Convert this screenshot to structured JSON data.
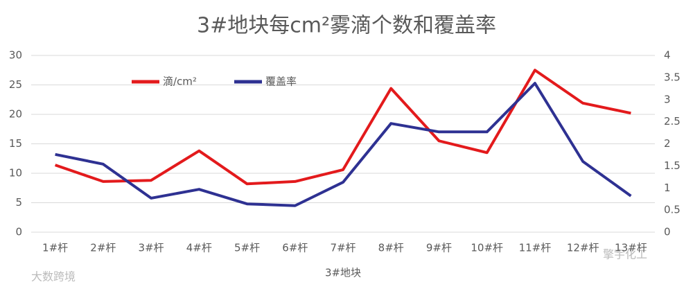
{
  "chart_data": {
    "type": "line",
    "title": "3#地块每cm²雾滴个数和覆盖率",
    "x_label": "3#地块",
    "categories": [
      "1#杆",
      "2#杆",
      "3#杆",
      "4#杆",
      "5#杆",
      "6#杆",
      "7#杆",
      "8#杆",
      "9#杆",
      "10#杆",
      "11#杆",
      "12#杆",
      "13#杆"
    ],
    "series": [
      {
        "name": "滴/cm²",
        "color": "#e31a1c",
        "values": [
          11.4,
          8.6,
          8.8,
          13.8,
          8.2,
          8.6,
          10.6,
          24.4,
          15.5,
          13.5,
          27.5,
          21.9,
          20.2
        ]
      },
      {
        "name": "覆盖率",
        "color": "#2e3192",
        "axis": "y2",
        "values": [
          1.76,
          1.54,
          0.77,
          0.97,
          0.64,
          0.6,
          1.13,
          2.46,
          2.27,
          2.27,
          3.37,
          1.6,
          0.82
        ]
      }
    ],
    "ylim": [
      0,
      30
    ],
    "yticks": [
      0,
      5,
      10,
      15,
      20,
      25,
      30
    ],
    "y2lim": [
      0,
      4
    ],
    "y2ticks": [
      0,
      0.5,
      1,
      1.5,
      2,
      2.5,
      3,
      3.5,
      4
    ],
    "grid": true,
    "watermarks": [
      "大数跨境",
      "擎宇化工"
    ]
  }
}
